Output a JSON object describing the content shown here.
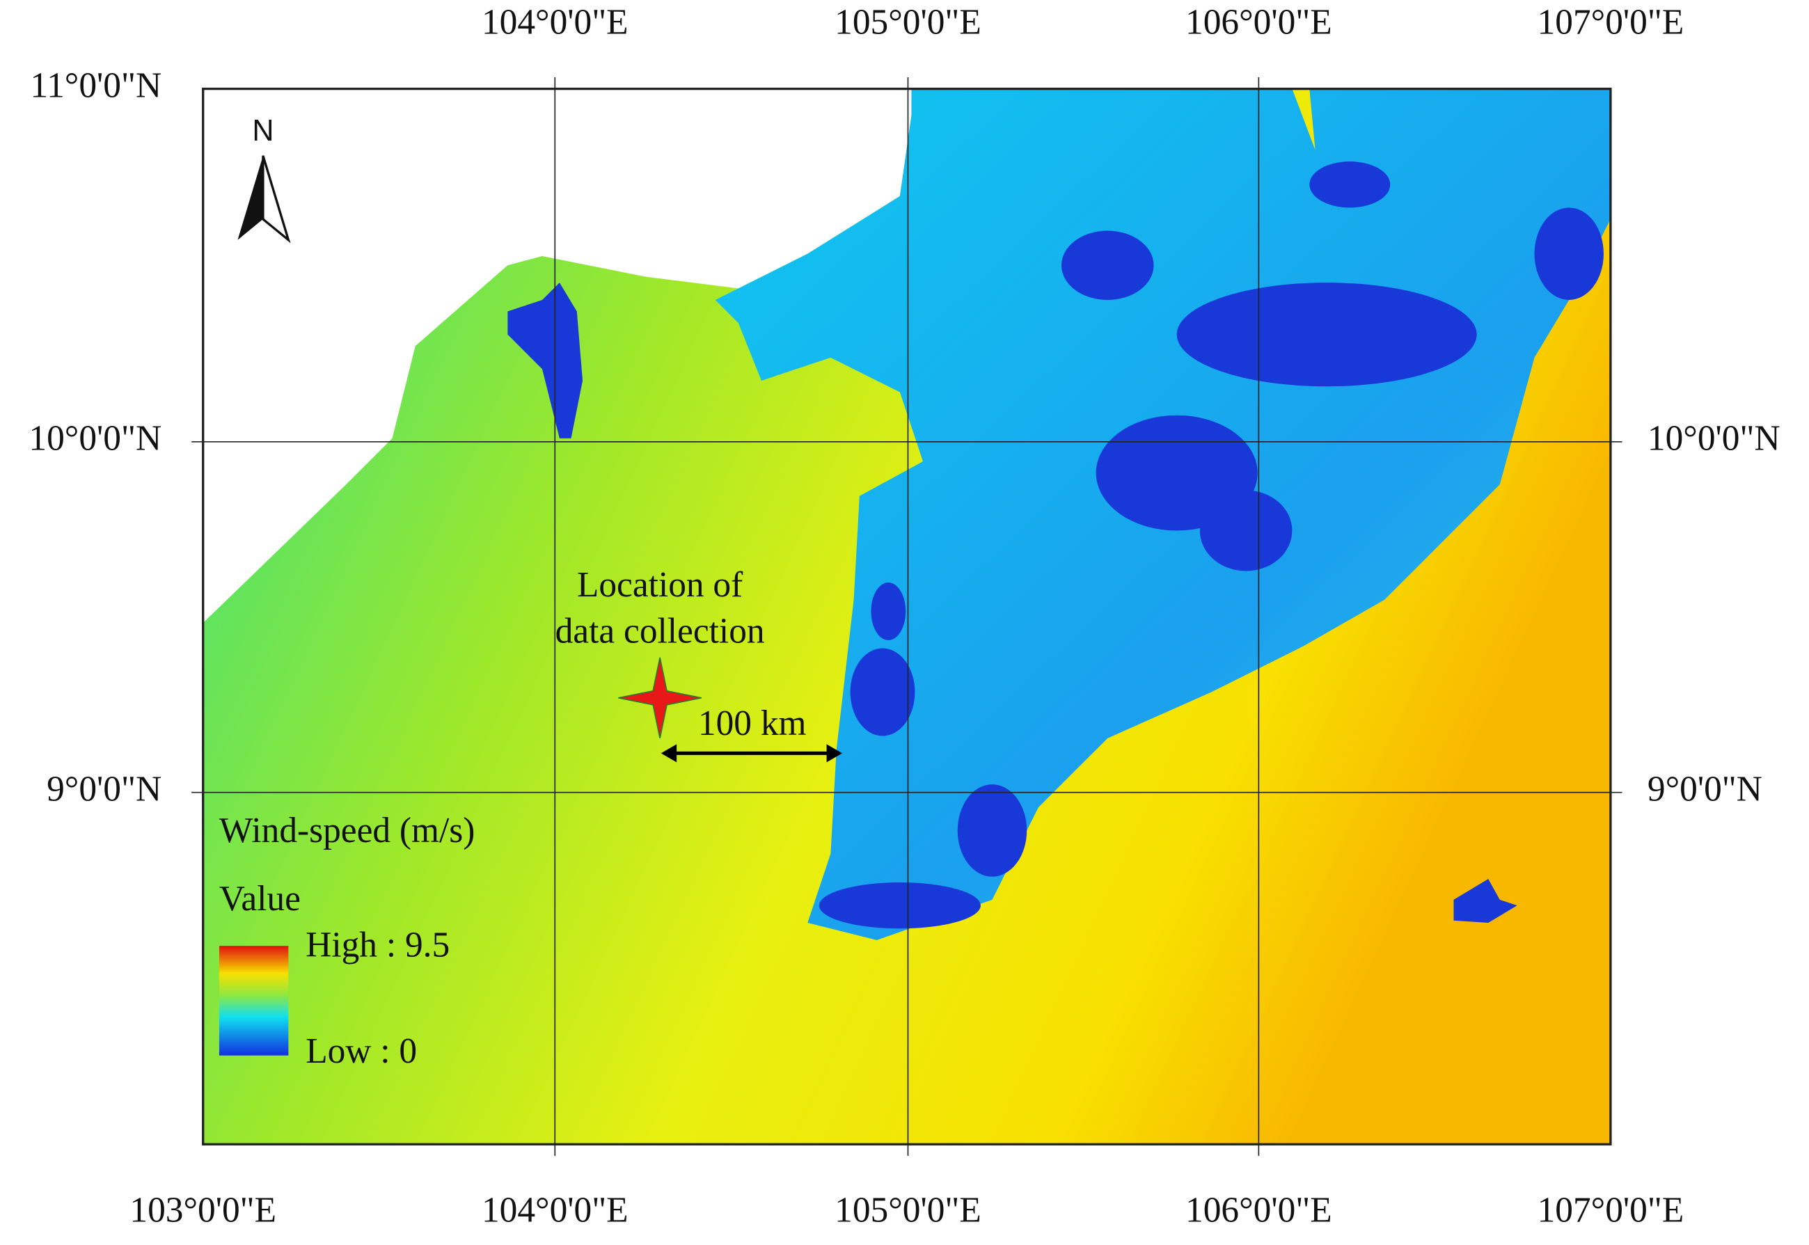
{
  "map": {
    "longitude_labels_top": [
      "104°0'0\"E",
      "105°0'0\"E",
      "106°0'0\"E",
      "107°0'0\"E"
    ],
    "longitude_labels_bottom": [
      "103°0'0\"E",
      "104°0'0\"E",
      "105°0'0\"E",
      "106°0'0\"E",
      "107°0'0\"E"
    ],
    "latitude_labels_left": [
      "11°0'0\"N",
      "10°0'0\"N",
      "9°0'0\"N"
    ],
    "latitude_labels_right": [
      "10°0'0\"N",
      "9°0'0\"N"
    ],
    "north_label": "N",
    "annotation_lines": [
      "Location of",
      "data collection"
    ],
    "scale_label": "100 km",
    "legend": {
      "title": "Wind-speed (m/s)",
      "subtitle": "Value",
      "high": "High : 9.5",
      "low": "Low : 0"
    }
  }
}
